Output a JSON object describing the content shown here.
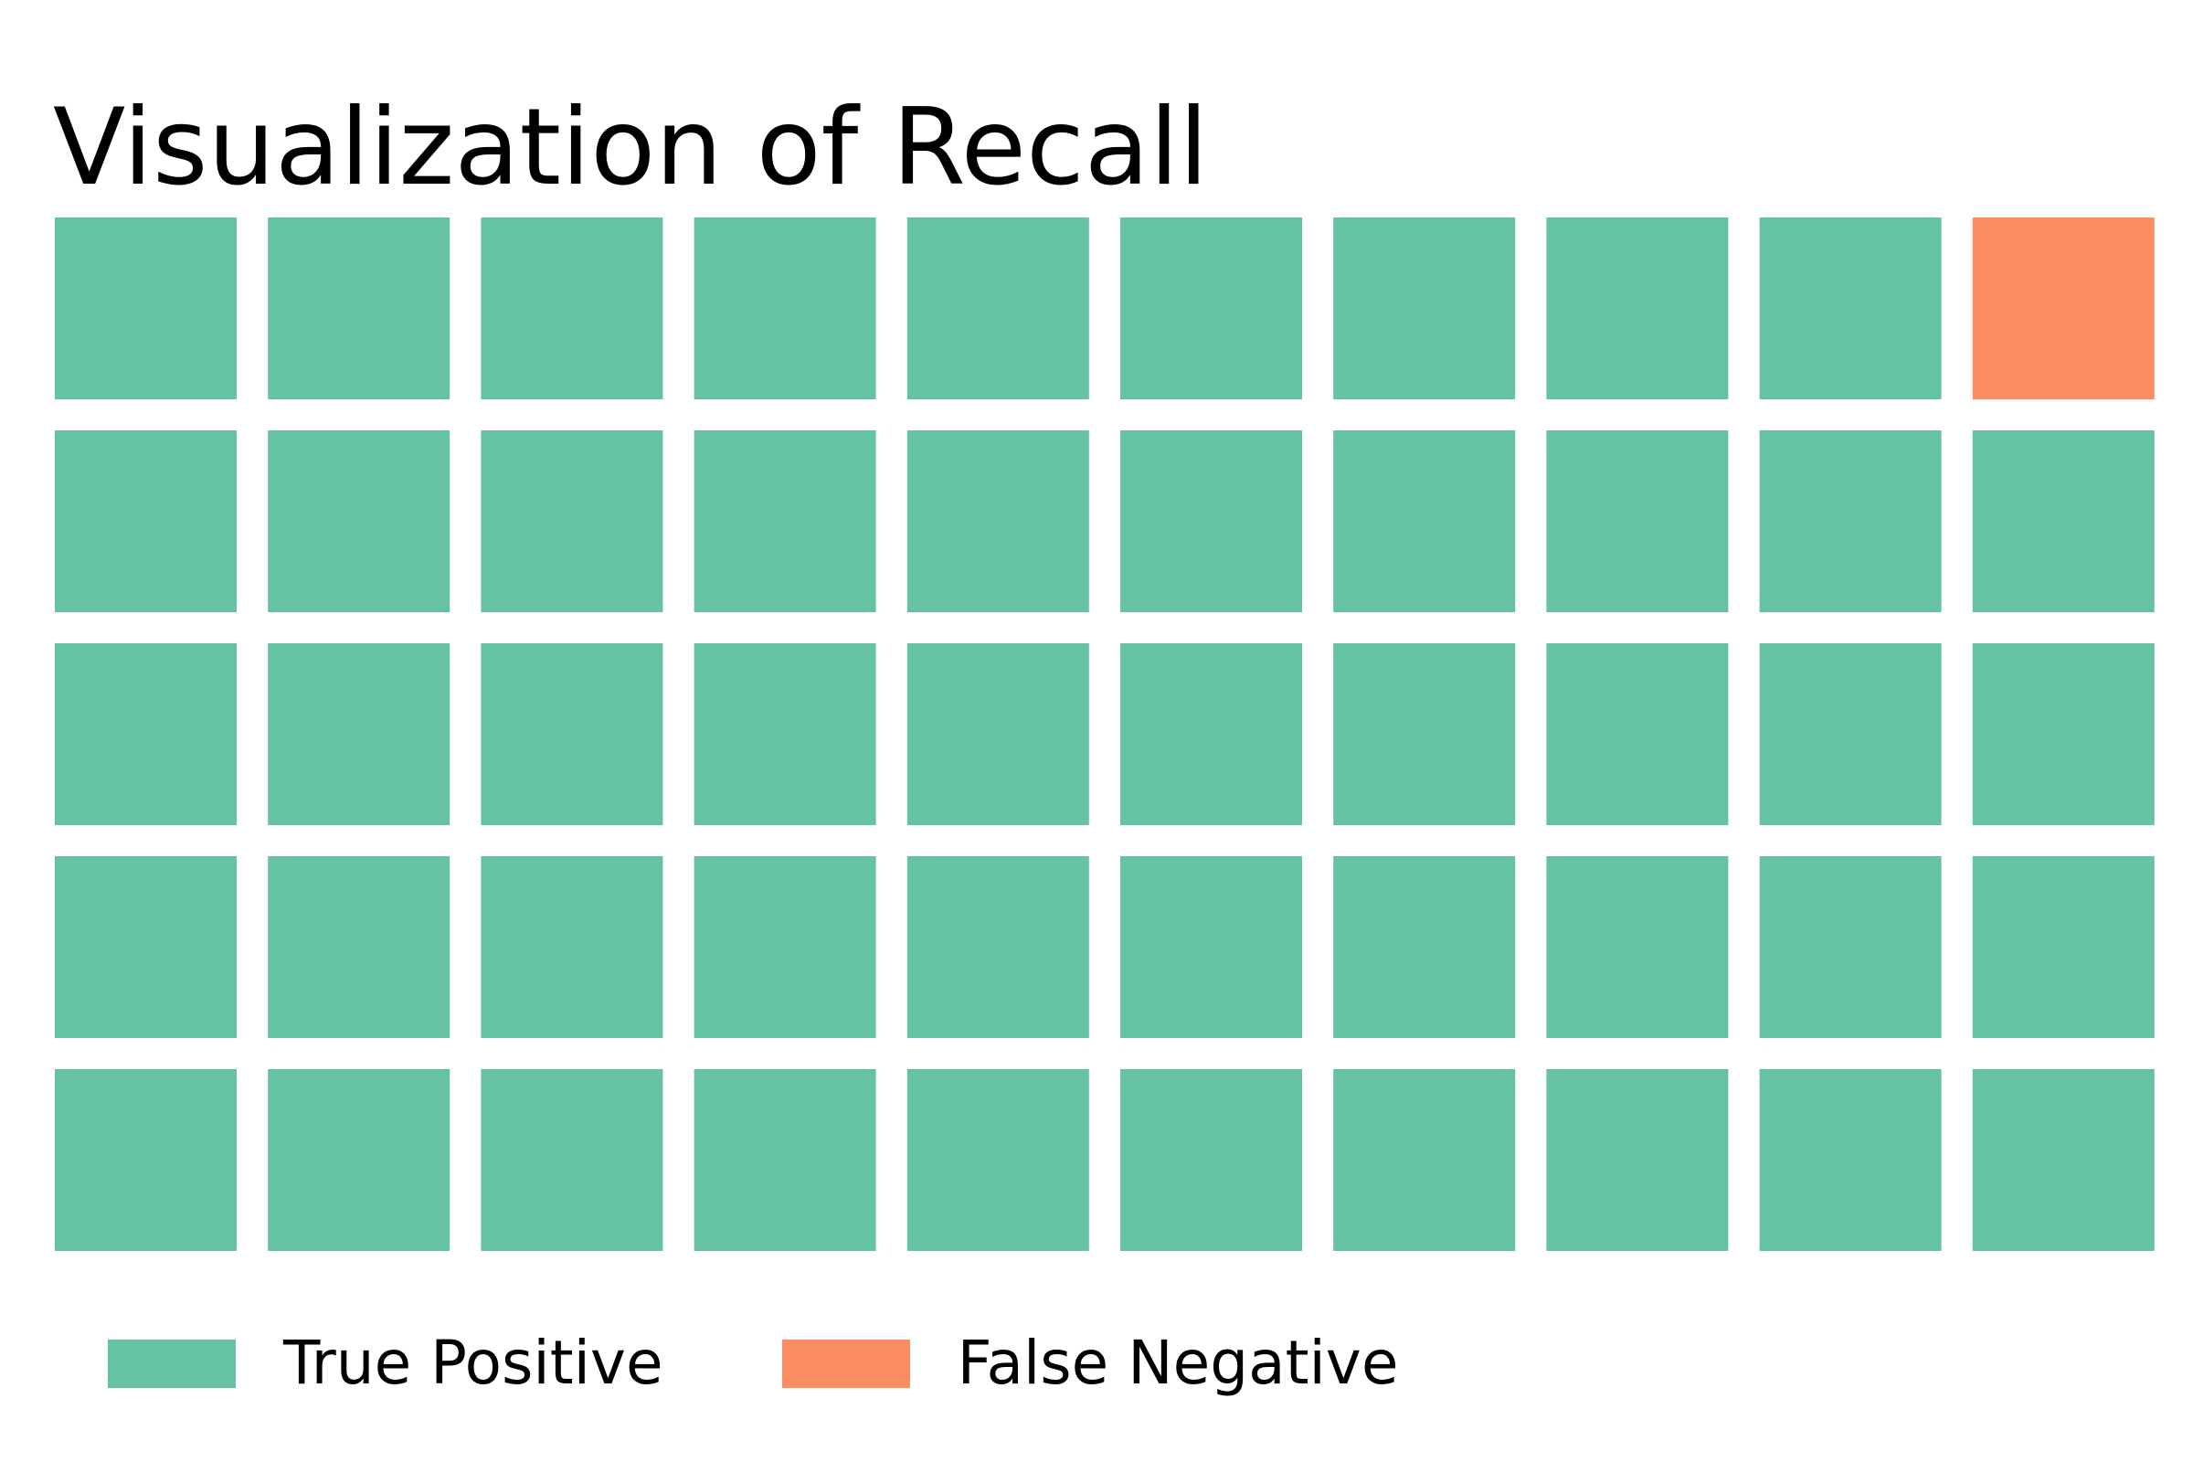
{
  "chart_data": {
    "type": "waffle",
    "title": "Visualization of Recall",
    "rows": 5,
    "columns": 10,
    "categories": [
      "True Positive",
      "False Negative"
    ],
    "values": [
      49,
      1
    ],
    "series": [
      {
        "name": "True Positive",
        "value": 49,
        "color": "#66c2a5"
      },
      {
        "name": "False Negative",
        "value": 1,
        "color": "#fc8d62"
      }
    ],
    "cells": [
      [
        "True Positive",
        "True Positive",
        "True Positive",
        "True Positive",
        "True Positive",
        "True Positive",
        "True Positive",
        "True Positive",
        "True Positive",
        "False Negative"
      ],
      [
        "True Positive",
        "True Positive",
        "True Positive",
        "True Positive",
        "True Positive",
        "True Positive",
        "True Positive",
        "True Positive",
        "True Positive",
        "True Positive"
      ],
      [
        "True Positive",
        "True Positive",
        "True Positive",
        "True Positive",
        "True Positive",
        "True Positive",
        "True Positive",
        "True Positive",
        "True Positive",
        "True Positive"
      ],
      [
        "True Positive",
        "True Positive",
        "True Positive",
        "True Positive",
        "True Positive",
        "True Positive",
        "True Positive",
        "True Positive",
        "True Positive",
        "True Positive"
      ],
      [
        "True Positive",
        "True Positive",
        "True Positive",
        "True Positive",
        "True Positive",
        "True Positive",
        "True Positive",
        "True Positive",
        "True Positive",
        "True Positive"
      ]
    ],
    "legend": {
      "placement": "bottom-left",
      "entries": [
        {
          "label": "True Positive",
          "color": "#66c2a5"
        },
        {
          "label": "False Negative",
          "color": "#fc8d62"
        }
      ]
    },
    "grid": false,
    "background": "#ffffff"
  }
}
